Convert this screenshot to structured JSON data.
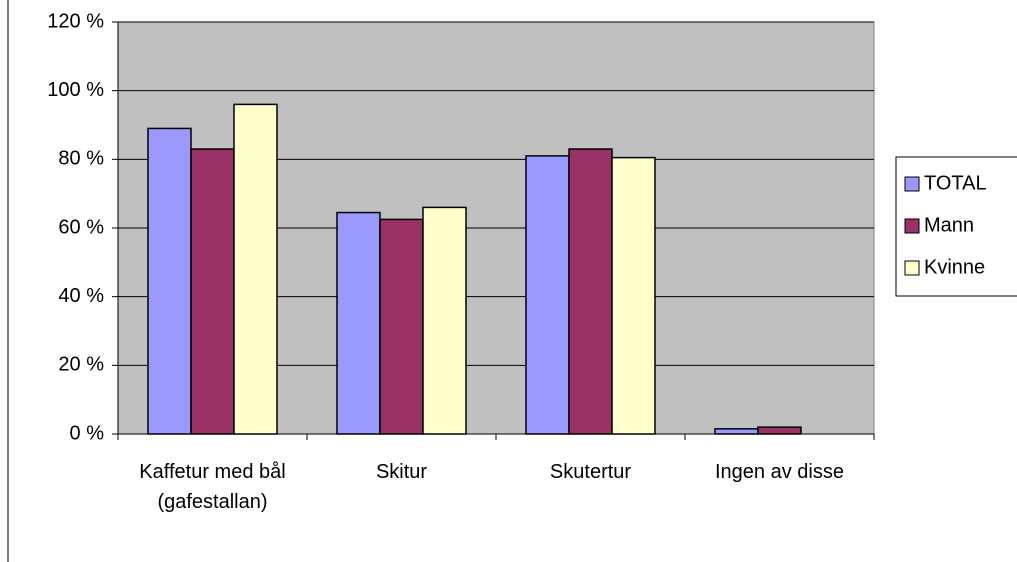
{
  "chart_data": {
    "type": "bar",
    "categories": [
      "Kaffetur med bål (gafestallan)",
      "Skitur",
      "Skutertur",
      "Ingen av disse"
    ],
    "series": [
      {
        "name": "TOTAL",
        "color": "#9999ff",
        "values": [
          89,
          64.5,
          81,
          1.5
        ]
      },
      {
        "name": "Mann",
        "color": "#993366",
        "values": [
          83,
          62.5,
          83,
          2
        ]
      },
      {
        "name": "Kvinne",
        "color": "#ffffcc",
        "values": [
          96,
          66,
          80.5,
          0
        ]
      }
    ],
    "ylim": [
      0,
      120
    ],
    "yticks": [
      {
        "value": 0,
        "label": "0 %"
      },
      {
        "value": 20,
        "label": "20 %"
      },
      {
        "value": 40,
        "label": "40 %"
      },
      {
        "value": 60,
        "label": "60 %"
      },
      {
        "value": 80,
        "label": "80 %"
      },
      {
        "value": 100,
        "label": "100 %"
      },
      {
        "value": 120,
        "label": "120 %"
      }
    ],
    "grid": true,
    "background": "#c0c0c0",
    "legend": "right"
  }
}
